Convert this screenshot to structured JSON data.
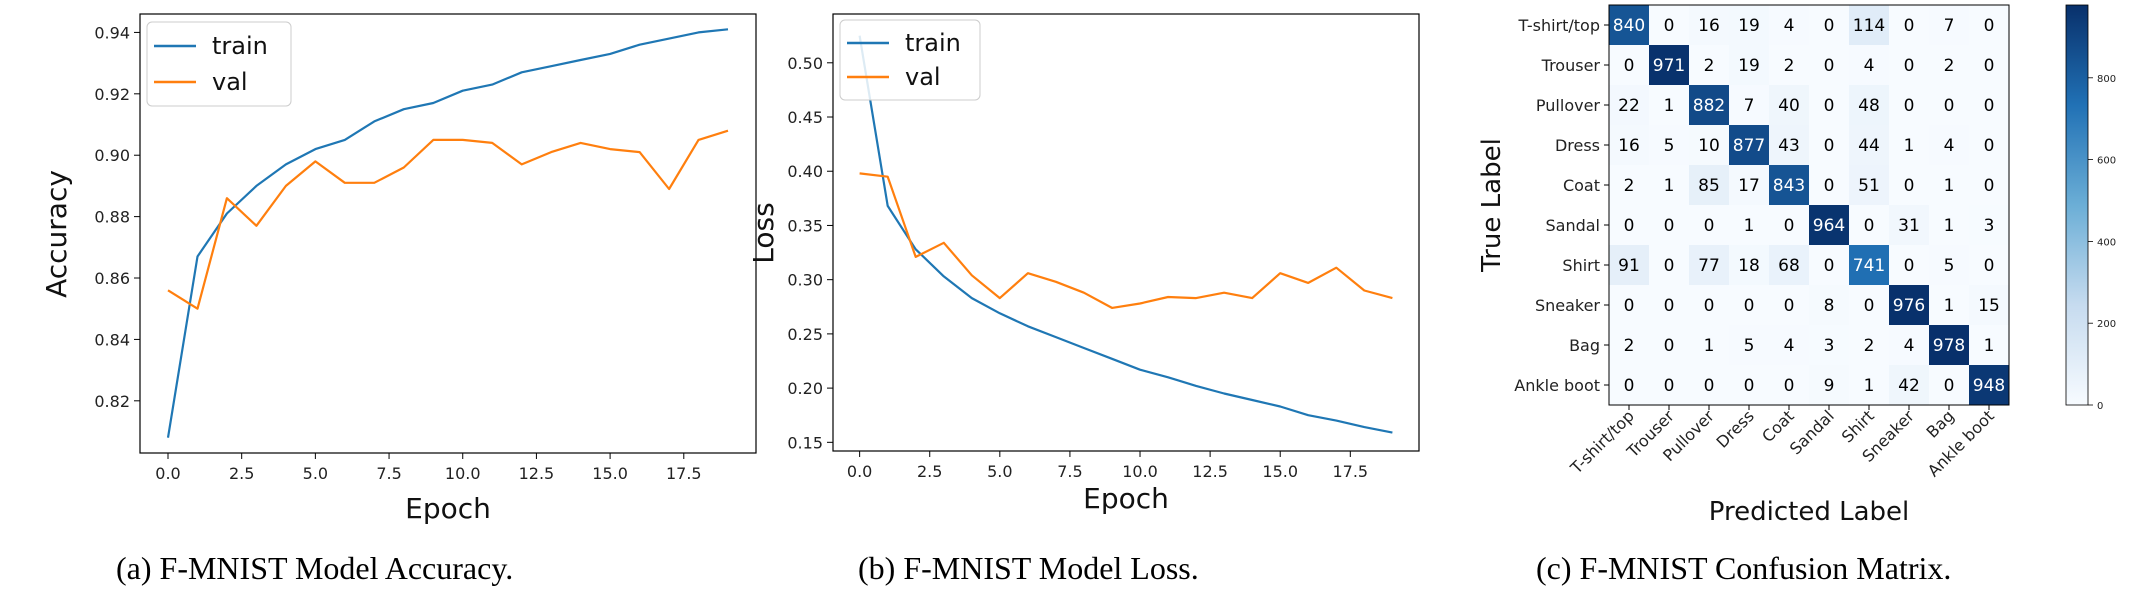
{
  "chart_data": [
    {
      "type": "line",
      "xlabel": "Epoch",
      "ylabel": "Accuracy",
      "xlim": [
        -0.95,
        19.95
      ],
      "ylim": [
        0.803,
        0.946
      ],
      "xticks": [
        "0.0",
        "2.5",
        "5.0",
        "7.5",
        "10.0",
        "12.5",
        "15.0",
        "17.5"
      ],
      "yticks": [
        "0.82",
        "0.84",
        "0.86",
        "0.88",
        "0.90",
        "0.92",
        "0.94"
      ],
      "legend": "top-left",
      "x": [
        0,
        1,
        2,
        3,
        4,
        5,
        6,
        7,
        8,
        9,
        10,
        11,
        12,
        13,
        14,
        15,
        16,
        17,
        18,
        19
      ],
      "series": [
        {
          "name": "train",
          "color": "#1f77b4",
          "values": [
            0.808,
            0.867,
            0.881,
            0.89,
            0.897,
            0.902,
            0.905,
            0.911,
            0.915,
            0.917,
            0.921,
            0.923,
            0.927,
            0.929,
            0.931,
            0.933,
            0.936,
            0.938,
            0.94,
            0.941
          ]
        },
        {
          "name": "val",
          "color": "#ff7f0e",
          "values": [
            0.856,
            0.85,
            0.886,
            0.877,
            0.89,
            0.898,
            0.891,
            0.891,
            0.896,
            0.905,
            0.905,
            0.904,
            0.897,
            0.901,
            0.904,
            0.902,
            0.901,
            0.889,
            0.905,
            0.908
          ]
        }
      ]
    },
    {
      "type": "line",
      "xlabel": "Epoch",
      "ylabel": "Loss",
      "xlim": [
        -0.95,
        19.95
      ],
      "ylim": [
        0.142,
        0.545
      ],
      "xticks": [
        "0.0",
        "2.5",
        "5.0",
        "7.5",
        "10.0",
        "12.5",
        "15.0",
        "17.5"
      ],
      "yticks": [
        "0.15",
        "0.20",
        "0.25",
        "0.30",
        "0.35",
        "0.40",
        "0.45",
        "0.50"
      ],
      "legend": "top-left",
      "x": [
        0,
        1,
        2,
        3,
        4,
        5,
        6,
        7,
        8,
        9,
        10,
        11,
        12,
        13,
        14,
        15,
        16,
        17,
        18,
        19
      ],
      "series": [
        {
          "name": "train",
          "color": "#1f77b4",
          "values": [
            0.525,
            0.368,
            0.328,
            0.303,
            0.283,
            0.269,
            0.257,
            0.247,
            0.237,
            0.227,
            0.217,
            0.21,
            0.202,
            0.195,
            0.189,
            0.183,
            0.175,
            0.17,
            0.164,
            0.159
          ]
        },
        {
          "name": "val",
          "color": "#ff7f0e",
          "values": [
            0.398,
            0.395,
            0.321,
            0.334,
            0.304,
            0.283,
            0.306,
            0.298,
            0.288,
            0.274,
            0.278,
            0.284,
            0.283,
            0.288,
            0.283,
            0.306,
            0.297,
            0.311,
            0.29,
            0.283
          ]
        }
      ]
    },
    {
      "type": "heatmap",
      "xlabel": "Predicted Label",
      "ylabel": "True Label",
      "labels": [
        "T-shirt/top",
        "Trouser",
        "Pullover",
        "Dress",
        "Coat",
        "Sandal",
        "Shirt",
        "Sneaker",
        "Bag",
        "Ankle boot"
      ],
      "colorbar_ticks": [
        "0",
        "200",
        "400",
        "600",
        "800"
      ],
      "colormap": "Blues",
      "vmin": 0,
      "vmax": 978,
      "values": [
        [
          840,
          0,
          16,
          19,
          4,
          0,
          114,
          0,
          7,
          0
        ],
        [
          0,
          971,
          2,
          19,
          2,
          0,
          4,
          0,
          2,
          0
        ],
        [
          22,
          1,
          882,
          7,
          40,
          0,
          48,
          0,
          0,
          0
        ],
        [
          16,
          5,
          10,
          877,
          43,
          0,
          44,
          1,
          4,
          0
        ],
        [
          2,
          1,
          85,
          17,
          843,
          0,
          51,
          0,
          1,
          0
        ],
        [
          0,
          0,
          0,
          1,
          0,
          964,
          0,
          31,
          1,
          3
        ],
        [
          91,
          0,
          77,
          18,
          68,
          0,
          741,
          0,
          5,
          0
        ],
        [
          0,
          0,
          0,
          0,
          0,
          8,
          0,
          976,
          1,
          15
        ],
        [
          2,
          0,
          1,
          5,
          4,
          3,
          2,
          4,
          978,
          1
        ],
        [
          0,
          0,
          0,
          0,
          0,
          9,
          1,
          42,
          0,
          948
        ]
      ]
    }
  ],
  "captions": {
    "a": "(a) F-MNIST Model Accuracy.",
    "b": "(b) F-MNIST Model Loss.",
    "c": "(c) F-MNIST Confusion Matrix."
  }
}
